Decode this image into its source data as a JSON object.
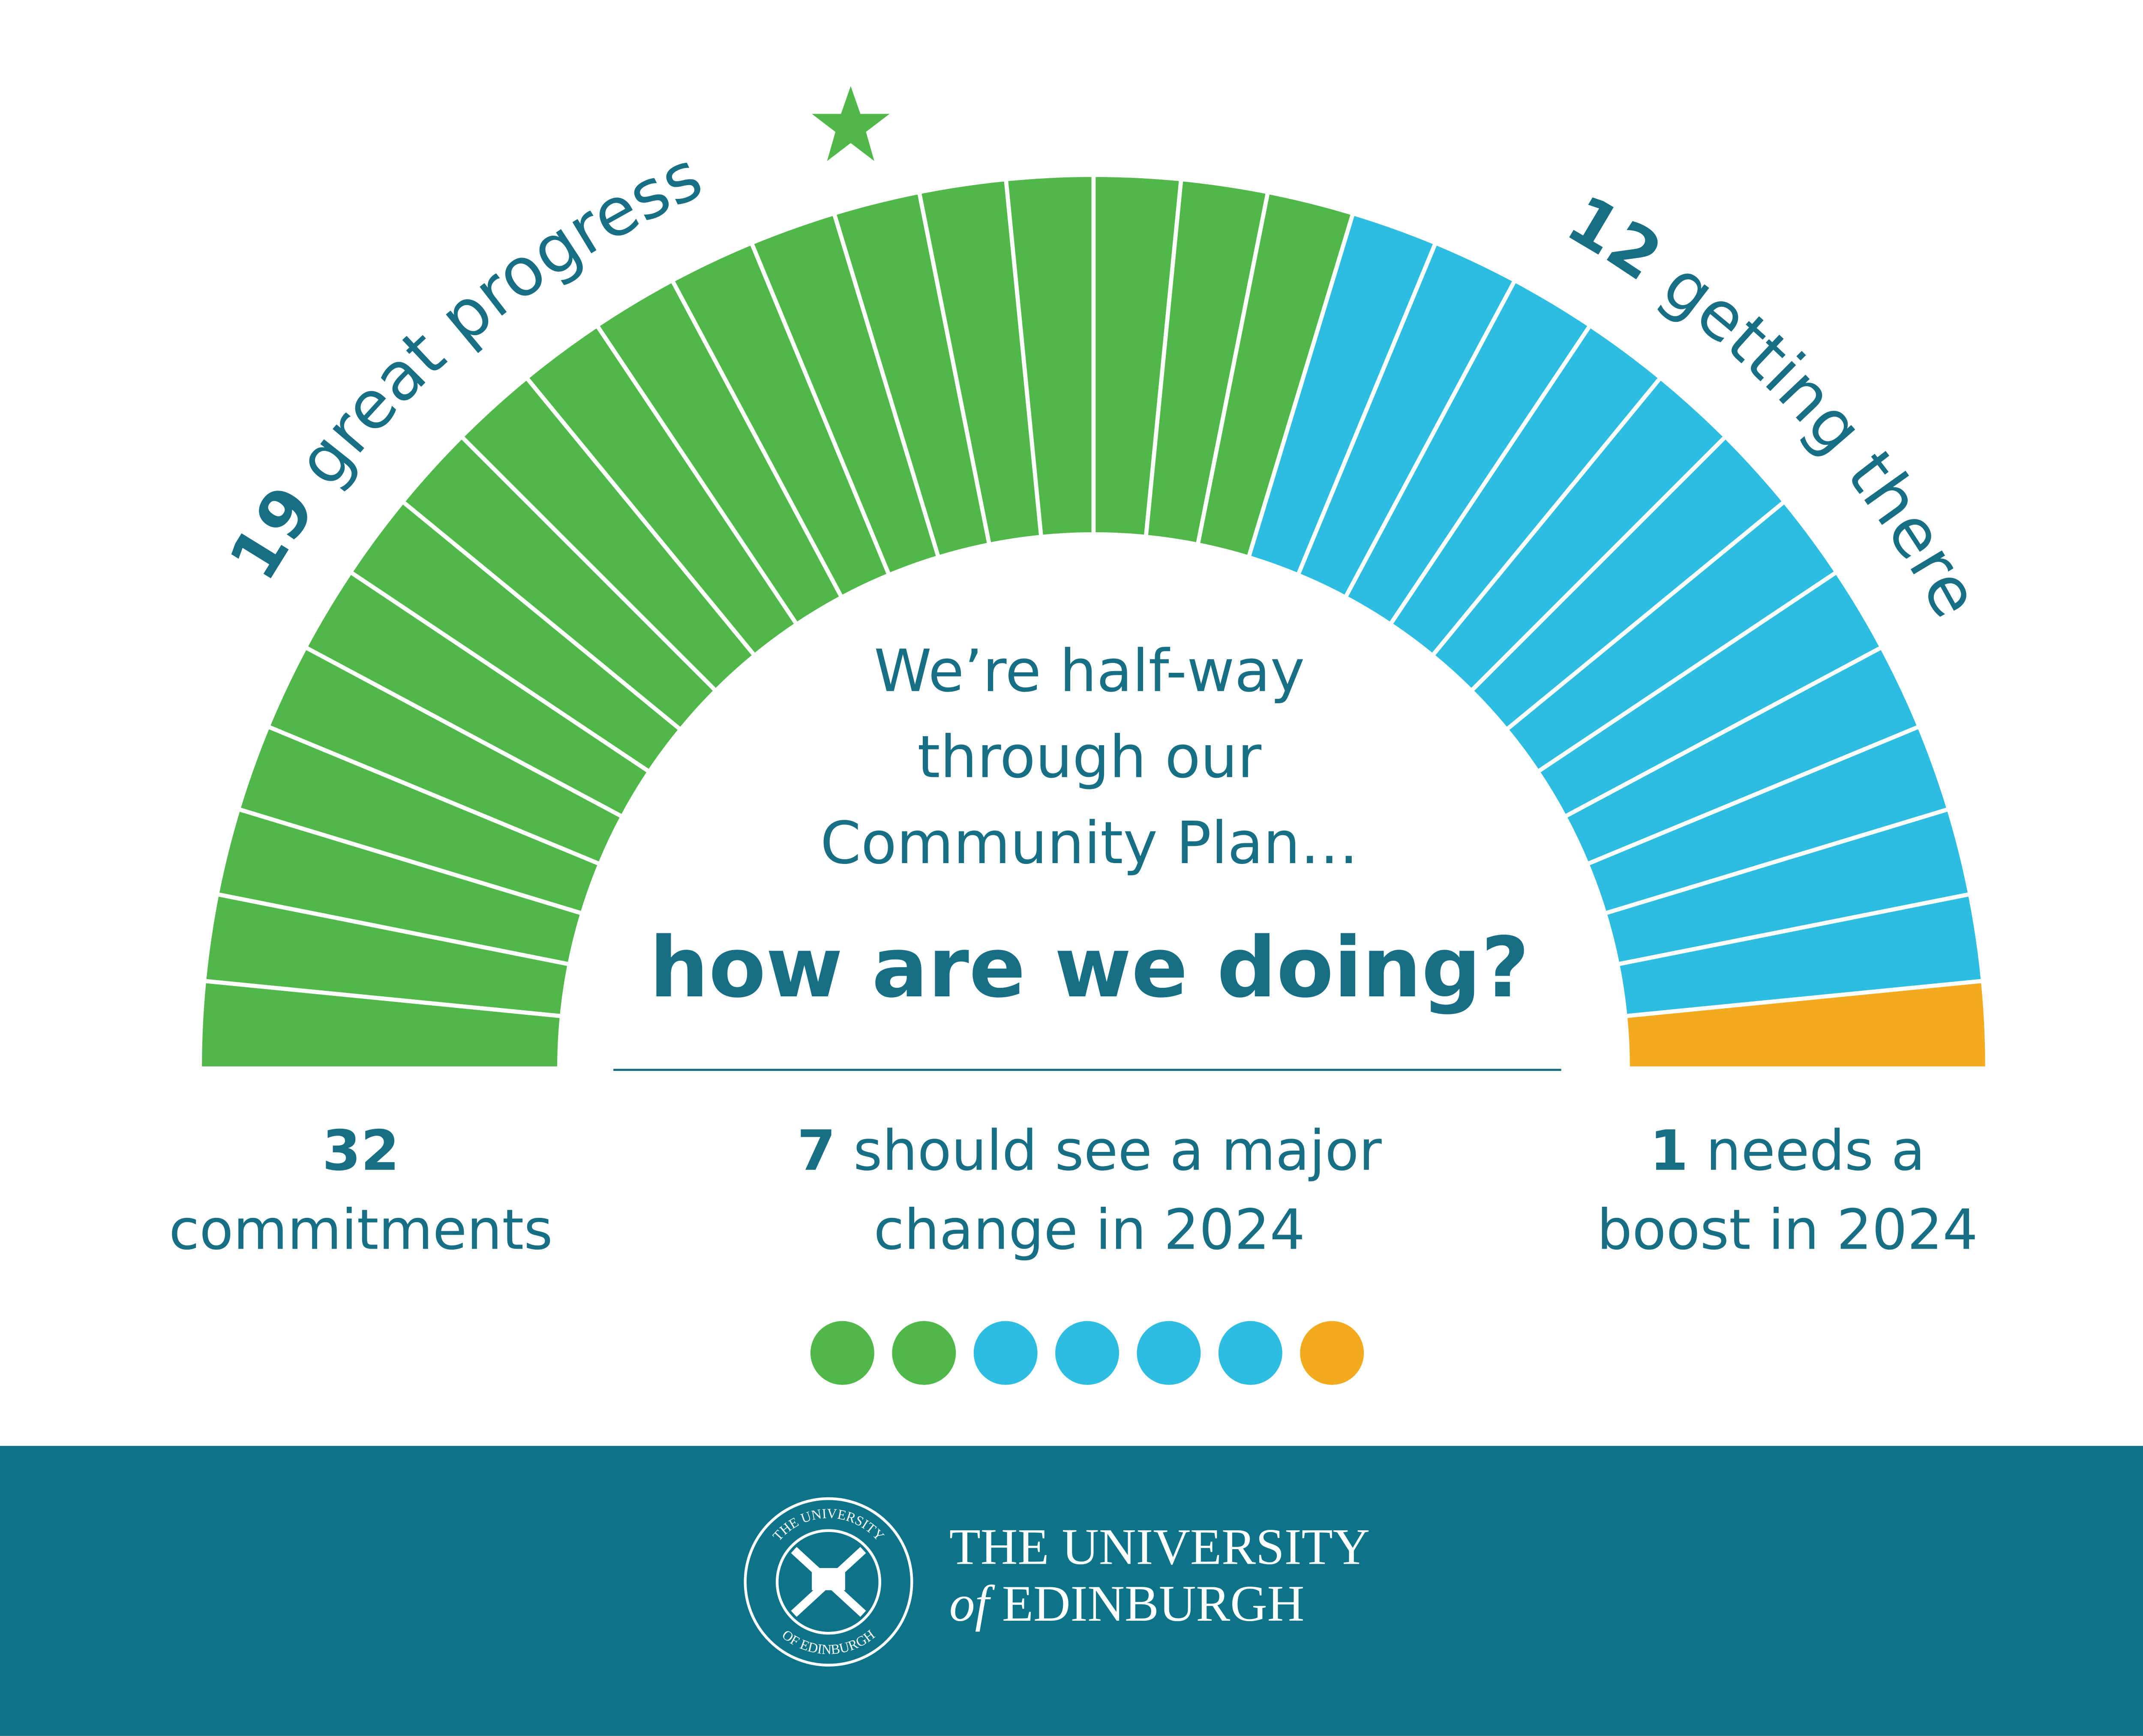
{
  "chart_data": {
    "type": "gauge",
    "headline": [
      "We’re half-way",
      "through our",
      "Community Plan…"
    ],
    "question": "how are we doing?",
    "series": [
      {
        "name": "great progress",
        "value": 19,
        "color": "#4fb848"
      },
      {
        "name": "getting there",
        "value": 12,
        "color": "#2cbde0"
      },
      {
        "name": [
          "needs a",
          "boost in 2024"
        ],
        "value": 1,
        "color": "#f4aa1f"
      }
    ],
    "total": {
      "value": 32,
      "label": "commitments"
    },
    "change": {
      "value": 7,
      "label": [
        "should see a major",
        "change in 2024"
      ],
      "dots": [
        2,
        4,
        1
      ]
    }
  },
  "footer": {
    "title": "THE UNIVERSITY",
    "subtitle_italic": "of",
    "subtitle": "EDINBURGH",
    "seal_top": "THE UNIVERSITY",
    "seal_bottom": "OF EDINBURGH"
  }
}
